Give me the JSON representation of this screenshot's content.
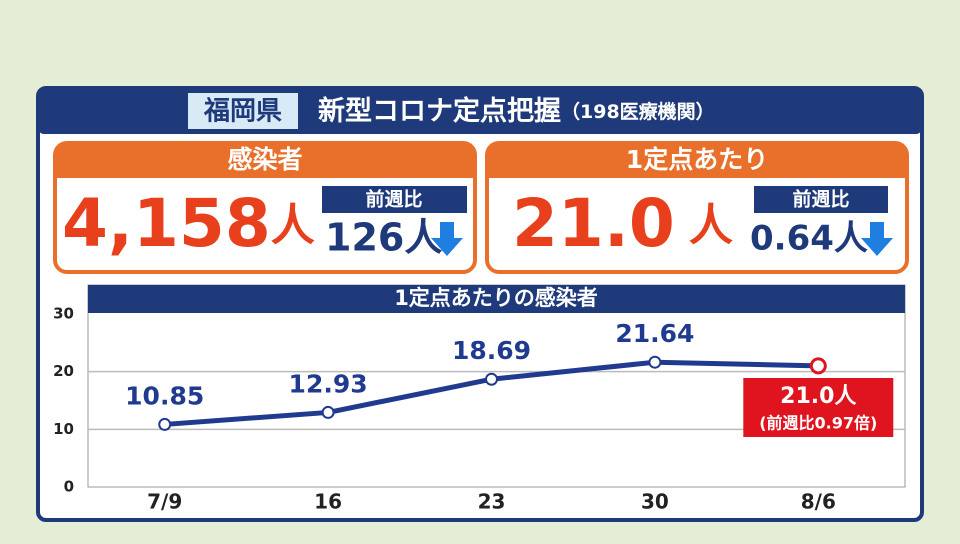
{
  "header": {
    "region": "福岡県",
    "title": "新型コロナ定点把握",
    "note": "（198医療機関）"
  },
  "panels": [
    {
      "title": "感染者",
      "value": "4,158",
      "unit": "人",
      "compare_label": "前週比",
      "compare_value": "126人"
    },
    {
      "title": "1定点あたり",
      "value": "21.0",
      "unit": "人",
      "compare_label": "前週比",
      "compare_value": "0.64人"
    }
  ],
  "chart_data": {
    "type": "line",
    "title": "1定点あたりの感染者",
    "categories": [
      "7/9",
      "16",
      "23",
      "30",
      "8/6"
    ],
    "series": [
      {
        "color": "#1f3a8f",
        "values": [
          10.85,
          12.93,
          18.69,
          21.64,
          21.0
        ],
        "value_labels": [
          "10.85",
          "12.93",
          "18.69",
          "21.64",
          "21.0人"
        ]
      }
    ],
    "highlight_color": "#e0141e",
    "annotation": "(前週比0.97倍)",
    "ylim": [
      0,
      30
    ],
    "yticks": [
      0,
      10,
      20,
      30
    ],
    "grid": true
  }
}
